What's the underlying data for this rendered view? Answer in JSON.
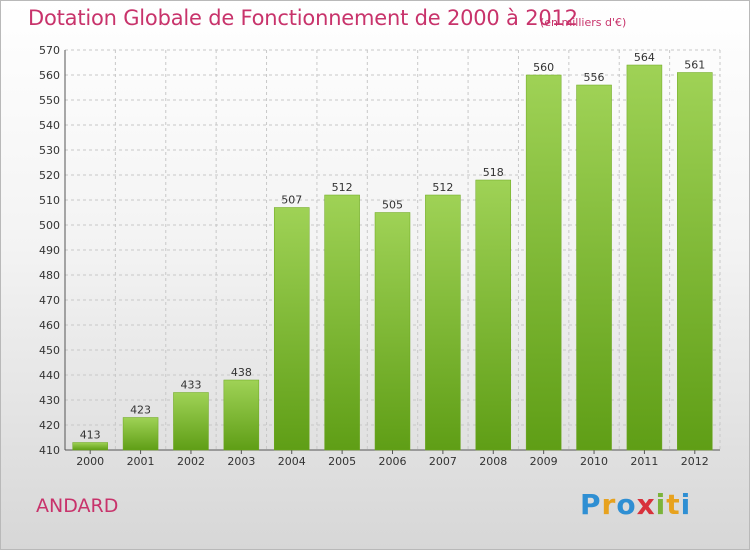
{
  "header": {
    "title": "Dotation Globale de Fonctionnement de 2000 à 2012",
    "unit_note": "(en milliers d'€)"
  },
  "footer": {
    "commune": "ANDARD",
    "logo_letters": [
      "P",
      "r",
      "o",
      "x",
      "i",
      "t",
      "i"
    ],
    "logo_colors": [
      "#2f8fd3",
      "#e7a21e",
      "#2f8fd3",
      "#d8313b",
      "#7bb33a",
      "#e7a21e",
      "#2f8fd3"
    ]
  },
  "colors": {
    "bar_top": "#9fd256",
    "bar_bottom": "#5f9e16",
    "grid": "#c8c8c8",
    "accent": "#c8336b"
  },
  "chart_data": {
    "type": "bar",
    "title": "Dotation Globale de Fonctionnement de 2000 à 2012",
    "subtitle": "(en milliers d'€)",
    "categories": [
      "2000",
      "2001",
      "2002",
      "2003",
      "2004",
      "2005",
      "2006",
      "2007",
      "2008",
      "2009",
      "2010",
      "2011",
      "2012"
    ],
    "values": [
      413,
      423,
      433,
      438,
      507,
      512,
      505,
      512,
      518,
      560,
      556,
      564,
      561
    ],
    "ylim": [
      410,
      570
    ],
    "yticks": [
      410,
      420,
      430,
      440,
      450,
      460,
      470,
      480,
      490,
      500,
      510,
      520,
      530,
      540,
      550,
      560,
      570
    ],
    "grid": true,
    "xlabel": "",
    "ylabel": ""
  }
}
